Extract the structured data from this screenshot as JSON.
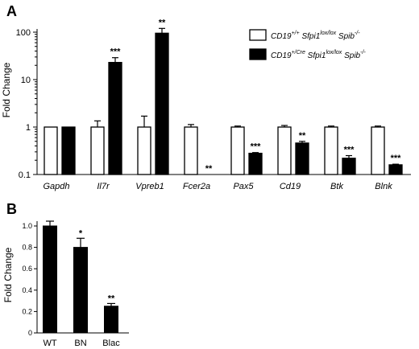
{
  "chart_data": [
    {
      "panel": "A",
      "type": "bar",
      "ylabel": "Fold Change",
      "yscale": "log",
      "ylim": [
        0.1,
        100
      ],
      "yticks": [
        "0.1",
        "1",
        "10",
        "100"
      ],
      "categories": [
        "Gapdh",
        "Il7r",
        "Vpreb1",
        "Fcer2a",
        "Pax5",
        "Cd19",
        "Btk",
        "Blnk"
      ],
      "series": [
        {
          "name": "CD19+/+ Sfpi1lox/lox Spib-/-",
          "color": "#ffffff",
          "values": [
            1,
            1,
            1,
            1,
            1,
            1,
            1,
            1
          ],
          "errors": [
            0,
            0.35,
            0.7,
            0.13,
            0.05,
            0.08,
            0.05,
            0.05
          ]
        },
        {
          "name": "CD19+/Cre Sfpi1lox/lox Spib-/-",
          "color": "#000000",
          "values": [
            1,
            23,
            95,
            0.1,
            0.28,
            0.46,
            0.22,
            0.16
          ],
          "errors": [
            0,
            6,
            25,
            0,
            0.01,
            0.04,
            0.03,
            0.005
          ]
        }
      ],
      "significance": [
        "",
        "***",
        "**",
        "**",
        "***",
        "**",
        "***",
        "***"
      ],
      "legend_location": "top-right"
    },
    {
      "panel": "B",
      "type": "bar",
      "ylabel": "Fold Change",
      "ylim": [
        0,
        1.0
      ],
      "yticks": [
        "0",
        "0.2",
        "0.4",
        "0.6",
        "0.8",
        "1.0"
      ],
      "categories": [
        "WT",
        "BN",
        "Blac"
      ],
      "values": [
        1.0,
        0.8,
        0.25
      ],
      "errors": [
        0.045,
        0.085,
        0.025
      ],
      "significance": [
        "",
        "*",
        "**"
      ],
      "color": "#000000"
    }
  ],
  "legend": [
    {
      "prefix": "CD19",
      "sup1": "+/+",
      "mid": " Sfpi1",
      "sup2": "lox/lox",
      "tail": " Spib",
      "sup3": "-/-",
      "fill": "#ffffff"
    },
    {
      "prefix": "CD19",
      "sup1": "+/Cre",
      "mid": " Sfpi1",
      "sup2": "lox/lox",
      "tail": " Spib",
      "sup3": "-/-",
      "fill": "#000000"
    }
  ]
}
